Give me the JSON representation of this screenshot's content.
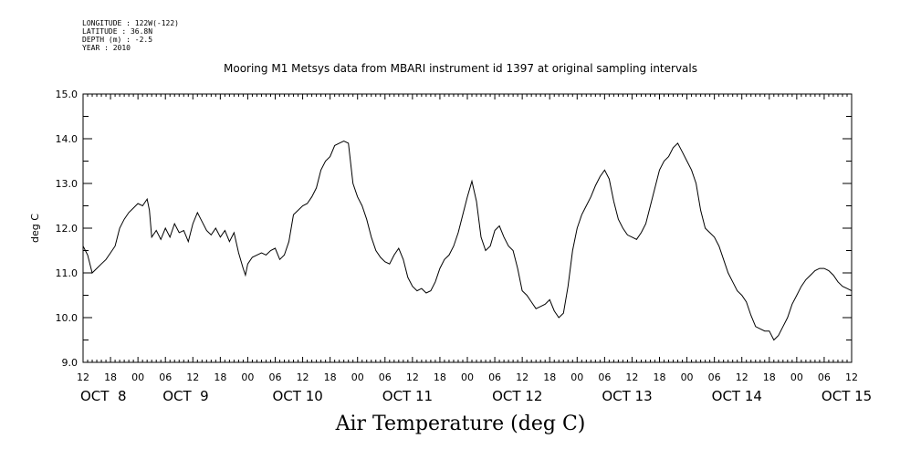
{
  "metadata_lines": [
    "LONGITUDE : 122W(-122)",
    "LATITUDE : 36.8N",
    "DEPTH (m) : -2.5",
    "YEAR : 2010"
  ],
  "chart_data": {
    "type": "line",
    "title": "Mooring M1 Metsys data from MBARI instrument id 1397 at original sampling intervals",
    "xlabel": "Air Temperature (deg C)",
    "ylabel": "deg C",
    "ylim": [
      9.0,
      15.0
    ],
    "yticks": [
      "9.0",
      "10.0",
      "11.0",
      "12.0",
      "13.0",
      "14.0",
      "15.0"
    ],
    "x_unit": "hours since Oct 8 12:00, 2010",
    "xlim": [
      0,
      168
    ],
    "hour_ticks": [
      "12",
      "18",
      "00",
      "06",
      "12",
      "18",
      "00",
      "06",
      "12",
      "18",
      "00",
      "06",
      "12",
      "18",
      "00",
      "06",
      "12",
      "18",
      "00",
      "06",
      "12",
      "18",
      "00",
      "06",
      "12",
      "18",
      "00",
      "06",
      "12"
    ],
    "day_labels": [
      {
        "text": "OCT  8",
        "hour": 0
      },
      {
        "text": "OCT  9",
        "hour": 18
      },
      {
        "text": "OCT 10",
        "hour": 42
      },
      {
        "text": "OCT 11",
        "hour": 66
      },
      {
        "text": "OCT 12",
        "hour": 90
      },
      {
        "text": "OCT 13",
        "hour": 114
      },
      {
        "text": "OCT 14",
        "hour": 138
      },
      {
        "text": "OCT 15",
        "hour": 162
      }
    ],
    "grid": false,
    "series": [
      {
        "color": "#000000",
        "points": [
          [
            0,
            11.6
          ],
          [
            1,
            11.4
          ],
          [
            2,
            11.0
          ],
          [
            3,
            11.1
          ],
          [
            4,
            11.2
          ],
          [
            5,
            11.3
          ],
          [
            6,
            11.45
          ],
          [
            7,
            11.6
          ],
          [
            8,
            12.0
          ],
          [
            9,
            12.2
          ],
          [
            10,
            12.35
          ],
          [
            11,
            12.45
          ],
          [
            12,
            12.55
          ],
          [
            13,
            12.5
          ],
          [
            14,
            12.65
          ],
          [
            14.5,
            12.4
          ],
          [
            15,
            11.8
          ],
          [
            16,
            11.95
          ],
          [
            17,
            11.75
          ],
          [
            18,
            12.0
          ],
          [
            19,
            11.8
          ],
          [
            20,
            12.1
          ],
          [
            21,
            11.9
          ],
          [
            22,
            11.95
          ],
          [
            23,
            11.7
          ],
          [
            24,
            12.1
          ],
          [
            25,
            12.35
          ],
          [
            26,
            12.15
          ],
          [
            27,
            11.95
          ],
          [
            28,
            11.85
          ],
          [
            29,
            12.0
          ],
          [
            30,
            11.8
          ],
          [
            31,
            11.95
          ],
          [
            32,
            11.7
          ],
          [
            33,
            11.9
          ],
          [
            34,
            11.45
          ],
          [
            35,
            11.1
          ],
          [
            35.5,
            10.95
          ],
          [
            36,
            11.2
          ],
          [
            37,
            11.35
          ],
          [
            38,
            11.4
          ],
          [
            39,
            11.45
          ],
          [
            40,
            11.4
          ],
          [
            41,
            11.5
          ],
          [
            42,
            11.55
          ],
          [
            43,
            11.3
          ],
          [
            44,
            11.4
          ],
          [
            45,
            11.7
          ],
          [
            46,
            12.3
          ],
          [
            47,
            12.4
          ],
          [
            48,
            12.5
          ],
          [
            49,
            12.55
          ],
          [
            50,
            12.7
          ],
          [
            51,
            12.9
          ],
          [
            52,
            13.3
          ],
          [
            53,
            13.5
          ],
          [
            54,
            13.6
          ],
          [
            55,
            13.85
          ],
          [
            56,
            13.9
          ],
          [
            57,
            13.95
          ],
          [
            58,
            13.9
          ],
          [
            59,
            13.0
          ],
          [
            60,
            12.7
          ],
          [
            61,
            12.5
          ],
          [
            62,
            12.2
          ],
          [
            63,
            11.8
          ],
          [
            64,
            11.5
          ],
          [
            65,
            11.35
          ],
          [
            66,
            11.25
          ],
          [
            67,
            11.2
          ],
          [
            68,
            11.4
          ],
          [
            69,
            11.55
          ],
          [
            70,
            11.3
          ],
          [
            71,
            10.9
          ],
          [
            72,
            10.7
          ],
          [
            73,
            10.6
          ],
          [
            74,
            10.65
          ],
          [
            75,
            10.55
          ],
          [
            76,
            10.6
          ],
          [
            77,
            10.8
          ],
          [
            78,
            11.1
          ],
          [
            79,
            11.3
          ],
          [
            80,
            11.4
          ],
          [
            81,
            11.6
          ],
          [
            82,
            11.9
          ],
          [
            83,
            12.3
          ],
          [
            84,
            12.7
          ],
          [
            85,
            13.05
          ],
          [
            86,
            12.6
          ],
          [
            87,
            11.8
          ],
          [
            88,
            11.5
          ],
          [
            89,
            11.6
          ],
          [
            90,
            11.95
          ],
          [
            91,
            12.05
          ],
          [
            92,
            11.8
          ],
          [
            93,
            11.6
          ],
          [
            94,
            11.5
          ],
          [
            95,
            11.1
          ],
          [
            96,
            10.6
          ],
          [
            97,
            10.5
          ],
          [
            98,
            10.35
          ],
          [
            99,
            10.2
          ],
          [
            100,
            10.25
          ],
          [
            101,
            10.3
          ],
          [
            102,
            10.4
          ],
          [
            103,
            10.15
          ],
          [
            104,
            10.0
          ],
          [
            105,
            10.1
          ],
          [
            106,
            10.7
          ],
          [
            107,
            11.5
          ],
          [
            108,
            12.0
          ],
          [
            109,
            12.3
          ],
          [
            110,
            12.5
          ],
          [
            111,
            12.7
          ],
          [
            112,
            12.95
          ],
          [
            113,
            13.15
          ],
          [
            114,
            13.3
          ],
          [
            115,
            13.1
          ],
          [
            116,
            12.6
          ],
          [
            117,
            12.2
          ],
          [
            118,
            12.0
          ],
          [
            119,
            11.85
          ],
          [
            120,
            11.8
          ],
          [
            121,
            11.75
          ],
          [
            122,
            11.9
          ],
          [
            123,
            12.1
          ],
          [
            124,
            12.5
          ],
          [
            125,
            12.9
          ],
          [
            126,
            13.3
          ],
          [
            127,
            13.5
          ],
          [
            128,
            13.6
          ],
          [
            129,
            13.8
          ],
          [
            130,
            13.9
          ],
          [
            131,
            13.7
          ],
          [
            132,
            13.5
          ],
          [
            133,
            13.3
          ],
          [
            134,
            13.0
          ],
          [
            135,
            12.4
          ],
          [
            136,
            12.0
          ],
          [
            137,
            11.9
          ],
          [
            138,
            11.8
          ],
          [
            139,
            11.6
          ],
          [
            140,
            11.3
          ],
          [
            141,
            11.0
          ],
          [
            142,
            10.8
          ],
          [
            143,
            10.6
          ],
          [
            144,
            10.5
          ],
          [
            145,
            10.35
          ],
          [
            146,
            10.05
          ],
          [
            147,
            9.8
          ],
          [
            148,
            9.75
          ],
          [
            149,
            9.7
          ],
          [
            150,
            9.7
          ],
          [
            151,
            9.5
          ],
          [
            152,
            9.6
          ],
          [
            153,
            9.8
          ],
          [
            154,
            10.0
          ],
          [
            155,
            10.3
          ],
          [
            156,
            10.5
          ],
          [
            157,
            10.7
          ],
          [
            158,
            10.85
          ],
          [
            159,
            10.95
          ],
          [
            160,
            11.05
          ],
          [
            161,
            11.1
          ],
          [
            162,
            11.1
          ],
          [
            163,
            11.05
          ],
          [
            164,
            10.95
          ],
          [
            165,
            10.8
          ],
          [
            166,
            10.7
          ],
          [
            167,
            10.65
          ],
          [
            168,
            10.6
          ]
        ]
      }
    ]
  }
}
